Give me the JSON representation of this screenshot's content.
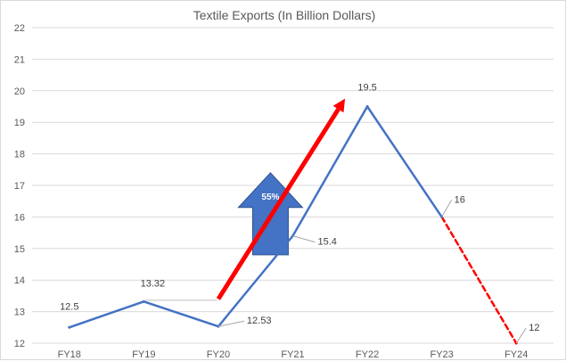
{
  "chart_data": {
    "type": "line",
    "title": "Textile Exports (In Billion Dollars)",
    "xlabel": "",
    "ylabel": "",
    "categories": [
      "FY18",
      "FY19",
      "FY20",
      "FY21",
      "FY22",
      "FY23",
      "FY24"
    ],
    "series": [
      {
        "values": [
          12.5,
          13.32,
          12.53,
          15.4,
          19.5,
          16,
          12
        ],
        "color": "#4472c4",
        "projected_from_index": 5,
        "projected_color": "#ff0000"
      }
    ],
    "data_labels": [
      "12.5",
      "13.32",
      "12.53",
      "15.4",
      "19.5",
      "16",
      "12"
    ],
    "ylim": [
      12,
      22
    ],
    "yticks": [
      12,
      13,
      14,
      15,
      16,
      17,
      18,
      19,
      20,
      21,
      22
    ],
    "grid": true,
    "annotations": [
      {
        "kind": "up-arrow",
        "text": "55%",
        "fill": "#4472c4",
        "stroke": "#2f528f"
      },
      {
        "kind": "trend-arrow",
        "color": "#ff0000",
        "from": {
          "x": "FY20",
          "y": 13.4
        },
        "to": {
          "x": "FY22",
          "y": 19.75
        }
      }
    ],
    "legend": "none"
  }
}
